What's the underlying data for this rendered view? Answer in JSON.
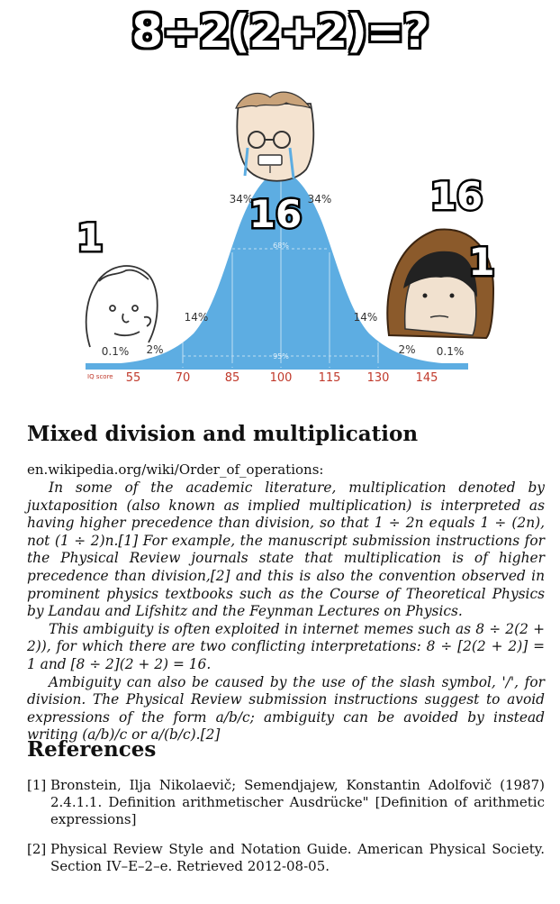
{
  "meme": {
    "title": "8÷2(2+2)=?",
    "left_answer": "1",
    "middle_answer": "16",
    "right_answer_top": "16",
    "right_answer_side": "1"
  },
  "bell_curve": {
    "percent_labels": [
      "0.1%",
      "2%",
      "14%",
      "34%",
      "34%",
      "14%",
      "2%",
      "0.1%"
    ],
    "inner_labels": [
      "68%",
      "95%"
    ],
    "iq_label": "IQ score",
    "iq_ticks": [
      "55",
      "70",
      "85",
      "100",
      "115",
      "130",
      "145"
    ],
    "curve_color": "#5dade2"
  },
  "article": {
    "heading": "Mixed division and multiplication",
    "source": "en.wikipedia.org/wiki/Order_of_operations:",
    "paragraphs": [
      "In some of the academic literature, multiplication denoted by juxtaposition (also known as implied multiplication) is interpreted as having higher precedence than division, so that 1 ÷ 2n equals 1 ÷ (2n), not (1 ÷ 2)n.[1] For example, the manuscript submission instructions for the Physical Review journals state that multiplication is of higher precedence than division,[2] and this is also the convention observed in prominent physics textbooks such as the Course of Theoretical Physics by Landau and Lifshitz and the Feynman Lectures on Physics.",
      "This ambiguity is often exploited in internet memes such as 8 ÷ 2(2 + 2)), for which there are two conflicting interpretations: 8 ÷ [2(2 + 2)] = 1 and [8 ÷ 2](2 + 2) = 16.",
      "Ambiguity can also be caused by the use of the slash symbol, '/', for division. The Physical Review submission instructions suggest to avoid expressions of the form a/b/c; ambiguity can be avoided by instead writing (a/b)/c or a/(b/c).[2]"
    ]
  },
  "references": {
    "heading": "References",
    "items": [
      {
        "num": "[1]",
        "text": "Bronstein, Ilja Nikolaevič; Semendjajew, Konstantin Adolfovič (1987) 2.4.1.1. Definition arithmetischer Ausdrücke\" [Definition of arithmetic expressions]"
      },
      {
        "num": "[2]",
        "text": "Physical Review Style and Notation Guide. American Physical Society. Section IV–E–2–e. Retrieved 2012-08-05."
      }
    ]
  }
}
